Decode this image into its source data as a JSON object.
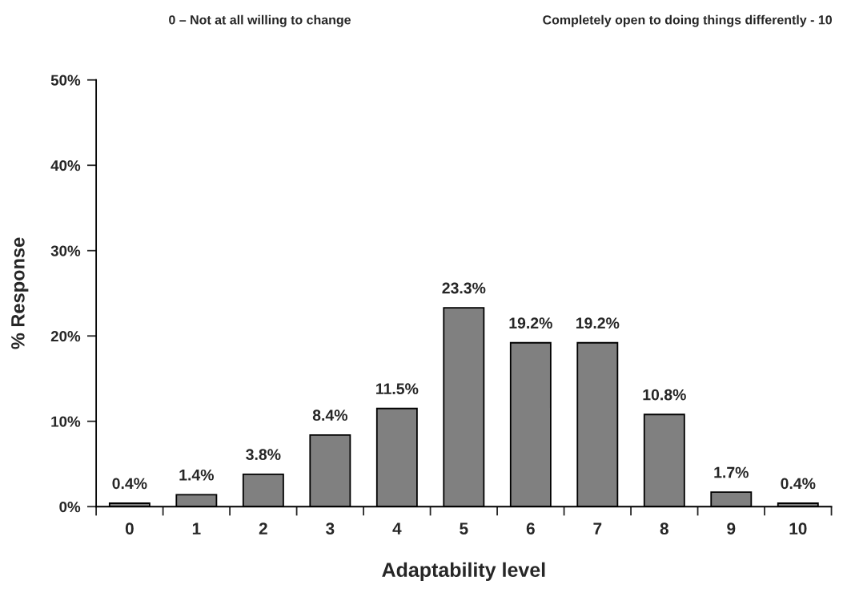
{
  "chart_data": {
    "type": "bar",
    "categories": [
      "0",
      "1",
      "2",
      "3",
      "4",
      "5",
      "6",
      "7",
      "8",
      "9",
      "10"
    ],
    "values": [
      0.4,
      1.4,
      3.8,
      8.4,
      11.5,
      23.3,
      19.2,
      19.2,
      10.8,
      1.7,
      0.4
    ],
    "value_labels": [
      "0.4%",
      "1.4%",
      "3.8%",
      "8.4%",
      "11.5%",
      "23.3%",
      "19.2%",
      "19.2%",
      "10.8%",
      "1.7%",
      "0.4%"
    ],
    "color": "#808080",
    "xlabel": "Adaptability level",
    "ylabel": "% Response",
    "ylim": [
      0,
      50
    ],
    "yticks": [
      {
        "value": 0,
        "label": "0%"
      },
      {
        "value": 10,
        "label": "10%"
      },
      {
        "value": 20,
        "label": "20%"
      },
      {
        "value": 30,
        "label": "30%"
      },
      {
        "value": 40,
        "label": "40%"
      },
      {
        "value": 50,
        "label": "50%"
      }
    ],
    "annotations": [
      "0 – Not at all willing to change",
      "Completely open to doing things differently - 10"
    ],
    "grid": false,
    "legend": false
  }
}
